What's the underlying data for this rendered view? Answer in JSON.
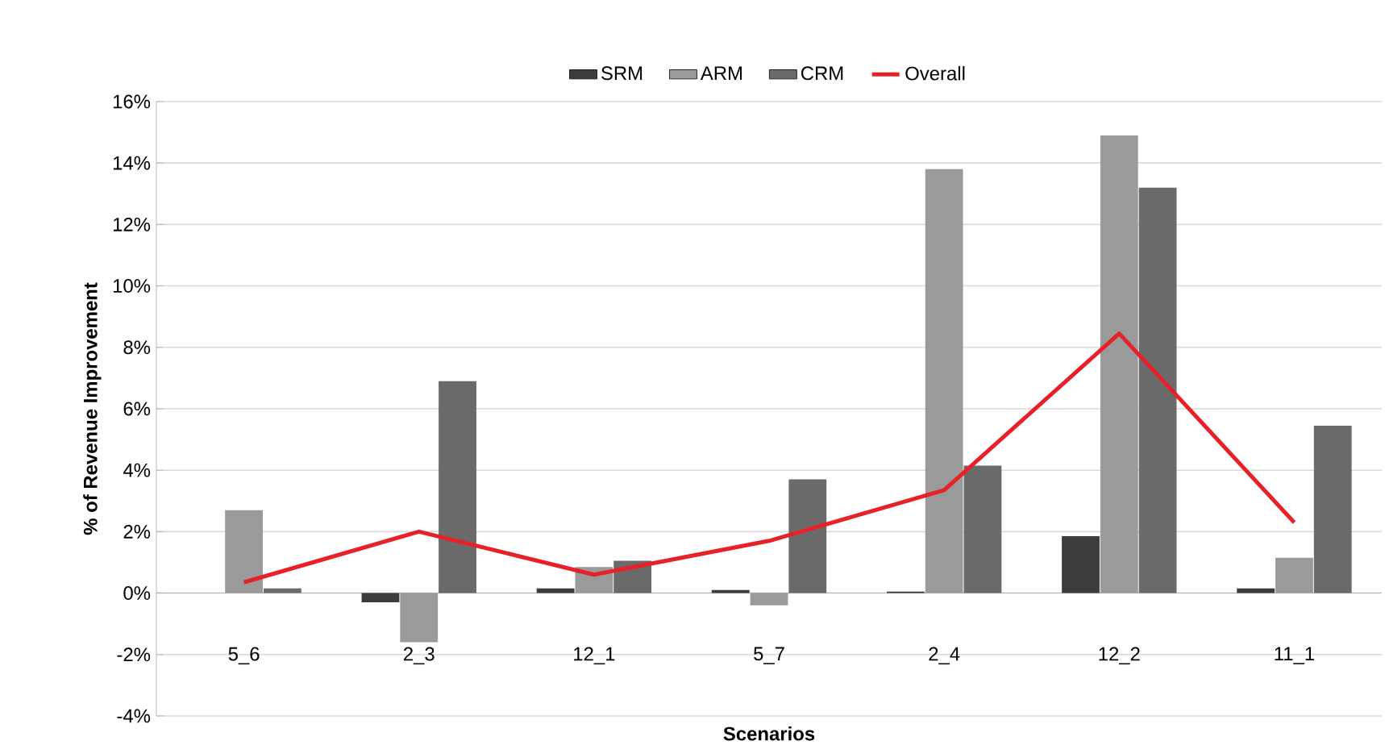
{
  "chart_data": {
    "type": "bar",
    "xlabel": "Scenarios",
    "ylabel": "% of Revenue Improvement",
    "categories": [
      "5_6",
      "2_3",
      "12_1",
      "5_7",
      "2_4",
      "12_2",
      "11_1"
    ],
    "series": [
      {
        "name": "SRM",
        "color": "#3c3c3c",
        "values": [
          0,
          -0.3,
          0.15,
          0.1,
          0.05,
          1.85,
          0.15
        ]
      },
      {
        "name": "ARM",
        "color": "#9a9a9a",
        "values": [
          2.7,
          -1.6,
          0.85,
          -0.4,
          13.8,
          14.9,
          1.15
        ]
      },
      {
        "name": "CRM",
        "color": "#6a6a6a",
        "values": [
          0.15,
          6.9,
          1.05,
          3.7,
          4.15,
          13.2,
          5.45
        ]
      },
      {
        "name": "Overall",
        "type": "line",
        "color": "#e8202a",
        "values": [
          0.35,
          2.0,
          0.6,
          1.7,
          3.35,
          8.45,
          2.3
        ]
      }
    ],
    "ylim": [
      -4,
      16
    ],
    "yticks": [
      {
        "value": -4,
        "label": "-4%"
      },
      {
        "value": -2,
        "label": "-2%"
      },
      {
        "value": 0,
        "label": "0%"
      },
      {
        "value": 2,
        "label": "2%"
      },
      {
        "value": 4,
        "label": "4%"
      },
      {
        "value": 6,
        "label": "6%"
      },
      {
        "value": 8,
        "label": "8%"
      },
      {
        "value": 10,
        "label": "10%"
      },
      {
        "value": 12,
        "label": "12%"
      },
      {
        "value": 14,
        "label": "14%"
      },
      {
        "value": 16,
        "label": "16%"
      }
    ],
    "grid": "y",
    "legend": "top",
    "marker": "none",
    "line_style": "solid"
  }
}
